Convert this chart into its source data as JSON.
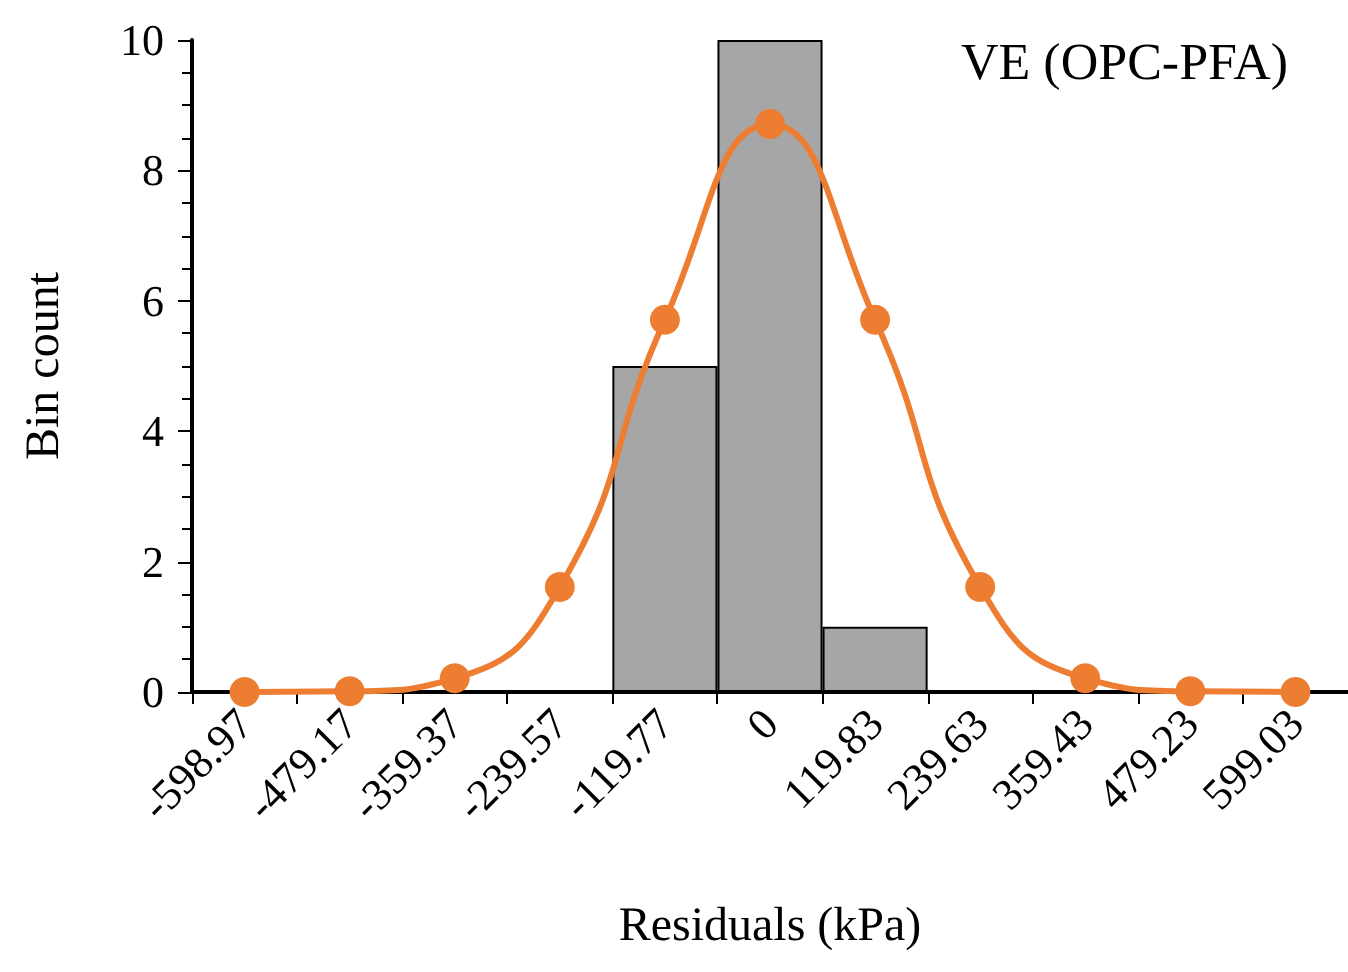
{
  "chart_data": {
    "type": "bar",
    "xlabel": "Residuals (kPa)",
    "ylabel": "Bin count",
    "annotations": [
      "VE (OPC-PFA)"
    ],
    "categories": [
      "-598.97",
      "-479.17",
      "-359.37",
      "-239.57",
      "-119.77",
      "0",
      "119.83",
      "239.63",
      "359.43",
      "479.23",
      "599.03"
    ],
    "series": [
      {
        "color": "#a6a6a6",
        "values": [
          0,
          0,
          0,
          0,
          5,
          10,
          1,
          0,
          0,
          0,
          0
        ]
      },
      {
        "type": "line",
        "color": "#ed7d31",
        "marker": "circle",
        "values": [
          0,
          0.01,
          0.21,
          1.61,
          5.71,
          8.71,
          5.71,
          1.61,
          0.21,
          0.01,
          0
        ]
      }
    ],
    "ylim": [
      0,
      10
    ],
    "yticks": [
      0,
      2,
      4,
      6,
      8,
      10
    ],
    "grid": false
  }
}
